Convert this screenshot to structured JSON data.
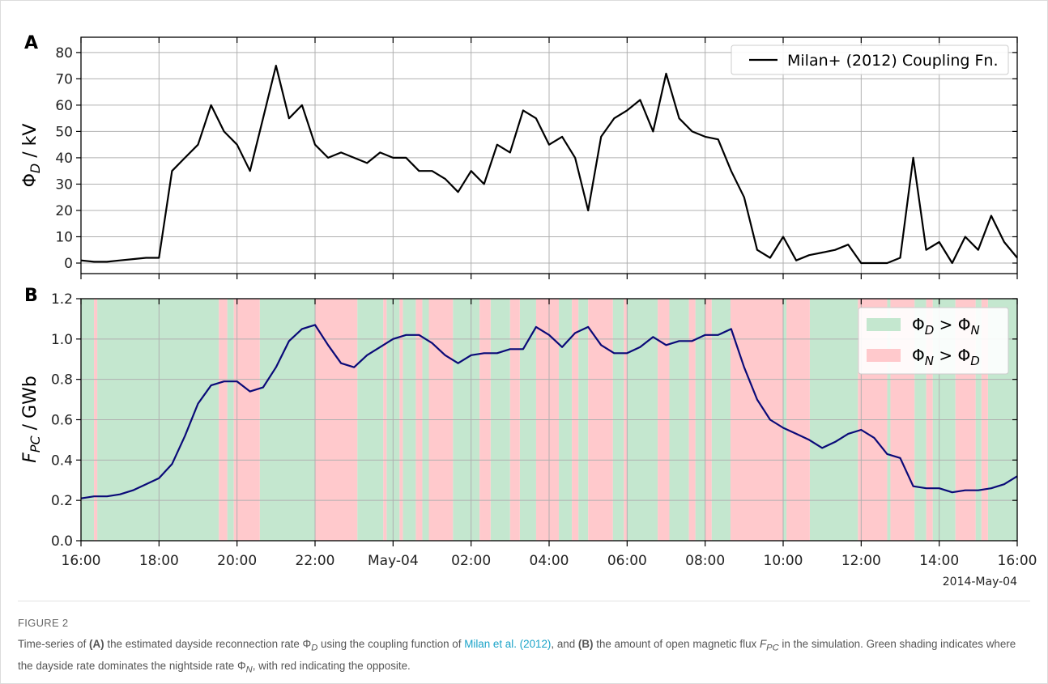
{
  "chart_data": [
    {
      "type": "line",
      "panel_label": "A",
      "ylabel": [
        "Φ",
        "D",
        " / kV"
      ],
      "ylim": [
        -4,
        85.8
      ],
      "yticks": [
        0,
        10,
        20,
        30,
        40,
        50,
        60,
        70,
        80
      ],
      "grid": true,
      "legend": "upper right",
      "xlim": [
        "2014-05-03 16:00",
        "2014-05-04 16:00"
      ],
      "xticks": [
        "2014-05-03 16:00",
        "2014-05-03 18:00",
        "2014-05-03 20:00",
        "2014-05-03 22:00",
        "2014-05-04 00:00",
        "2014-05-04 02:00",
        "2014-05-04 04:00",
        "2014-05-04 06:00",
        "2014-05-04 08:00",
        "2014-05-04 10:00",
        "2014-05-04 12:00",
        "2014-05-04 14:00",
        "2014-05-04 16:00"
      ],
      "x": [
        "2014-05-03 16:00",
        "2014-05-03 16:20",
        "2014-05-03 16:40",
        "2014-05-03 17:00",
        "2014-05-03 17:20",
        "2014-05-03 17:40",
        "2014-05-03 18:00",
        "2014-05-03 18:20",
        "2014-05-03 18:40",
        "2014-05-03 19:00",
        "2014-05-03 19:20",
        "2014-05-03 19:40",
        "2014-05-03 20:00",
        "2014-05-03 20:20",
        "2014-05-03 20:40",
        "2014-05-03 21:00",
        "2014-05-03 21:20",
        "2014-05-03 21:40",
        "2014-05-03 22:00",
        "2014-05-03 22:20",
        "2014-05-03 22:40",
        "2014-05-03 23:00",
        "2014-05-03 23:20",
        "2014-05-03 23:40",
        "2014-05-04 00:00",
        "2014-05-04 00:20",
        "2014-05-04 00:40",
        "2014-05-04 01:00",
        "2014-05-04 01:20",
        "2014-05-04 01:40",
        "2014-05-04 02:00",
        "2014-05-04 02:20",
        "2014-05-04 02:40",
        "2014-05-04 03:00",
        "2014-05-04 03:20",
        "2014-05-04 03:40",
        "2014-05-04 04:00",
        "2014-05-04 04:20",
        "2014-05-04 04:40",
        "2014-05-04 05:00",
        "2014-05-04 05:20",
        "2014-05-04 05:40",
        "2014-05-04 06:00",
        "2014-05-04 06:20",
        "2014-05-04 06:40",
        "2014-05-04 07:00",
        "2014-05-04 07:20",
        "2014-05-04 07:40",
        "2014-05-04 08:00",
        "2014-05-04 08:20",
        "2014-05-04 08:40",
        "2014-05-04 09:00",
        "2014-05-04 09:20",
        "2014-05-04 09:40",
        "2014-05-04 10:00",
        "2014-05-04 10:20",
        "2014-05-04 10:40",
        "2014-05-04 11:00",
        "2014-05-04 11:20",
        "2014-05-04 11:40",
        "2014-05-04 12:00",
        "2014-05-04 12:20",
        "2014-05-04 12:40",
        "2014-05-04 13:00",
        "2014-05-04 13:20",
        "2014-05-04 13:40",
        "2014-05-04 14:00",
        "2014-05-04 14:20",
        "2014-05-04 14:40",
        "2014-05-04 15:00",
        "2014-05-04 15:20",
        "2014-05-04 15:40",
        "2014-05-04 16:00"
      ],
      "series": [
        {
          "name": "Milan+ (2012) Coupling Fn.",
          "color": "#000000",
          "values": [
            1,
            0.5,
            0.5,
            1,
            1.5,
            2,
            2,
            35,
            40,
            45,
            60,
            50,
            45,
            35,
            55,
            75,
            55,
            60,
            45,
            40,
            42,
            40,
            38,
            42,
            40,
            40,
            35,
            35,
            32,
            27,
            35,
            30,
            45,
            42,
            58,
            55,
            45,
            48,
            40,
            20,
            48,
            55,
            58,
            62,
            50,
            72,
            55,
            50,
            48,
            47,
            35,
            25,
            5,
            2,
            10,
            1,
            3,
            4,
            5,
            7,
            0,
            0,
            0,
            2,
            40,
            5,
            8,
            0,
            10,
            5,
            18,
            8,
            2
          ]
        }
      ]
    },
    {
      "type": "line",
      "panel_label": "B",
      "ylabel": [
        "F",
        "PC",
        " / GWb"
      ],
      "ylim": [
        0,
        1.2
      ],
      "yticks": [
        {
          "value": 0,
          "label": "0.0"
        },
        0.2,
        0.4,
        0.6,
        0.8,
        {
          "value": 1,
          "label": "1.0"
        },
        1.2
      ],
      "grid": true,
      "legend": "upper right",
      "xlim": [
        "2014-05-03 16:00",
        "2014-05-04 16:00"
      ],
      "xticks": [
        {
          "value": "2014-05-03 16:00",
          "label": "16:00"
        },
        {
          "value": "2014-05-03 18:00",
          "label": "18:00"
        },
        {
          "value": "2014-05-03 20:00",
          "label": "20:00"
        },
        {
          "value": "2014-05-03 22:00",
          "label": "22:00"
        },
        {
          "value": "2014-05-04 00:00",
          "label": "May-04"
        },
        {
          "value": "2014-05-04 02:00",
          "label": "02:00"
        },
        {
          "value": "2014-05-04 04:00",
          "label": "04:00"
        },
        {
          "value": "2014-05-04 06:00",
          "label": "06:00"
        },
        {
          "value": "2014-05-04 08:00",
          "label": "08:00"
        },
        {
          "value": "2014-05-04 10:00",
          "label": "10:00"
        },
        {
          "value": "2014-05-04 12:00",
          "label": "12:00"
        },
        {
          "value": "2014-05-04 14:00",
          "label": "14:00"
        },
        {
          "value": "2014-05-04 16:00",
          "label": "16:00"
        }
      ],
      "x_offset_label": "2014-May-04",
      "x": [
        "2014-05-03 16:00",
        "2014-05-03 16:20",
        "2014-05-03 16:40",
        "2014-05-03 17:00",
        "2014-05-03 17:20",
        "2014-05-03 17:40",
        "2014-05-03 18:00",
        "2014-05-03 18:20",
        "2014-05-03 18:40",
        "2014-05-03 19:00",
        "2014-05-03 19:20",
        "2014-05-03 19:40",
        "2014-05-03 20:00",
        "2014-05-03 20:20",
        "2014-05-03 20:40",
        "2014-05-03 21:00",
        "2014-05-03 21:20",
        "2014-05-03 21:40",
        "2014-05-03 22:00",
        "2014-05-03 22:20",
        "2014-05-03 22:40",
        "2014-05-03 23:00",
        "2014-05-03 23:20",
        "2014-05-03 23:40",
        "2014-05-04 00:00",
        "2014-05-04 00:20",
        "2014-05-04 00:40",
        "2014-05-04 01:00",
        "2014-05-04 01:20",
        "2014-05-04 01:40",
        "2014-05-04 02:00",
        "2014-05-04 02:20",
        "2014-05-04 02:40",
        "2014-05-04 03:00",
        "2014-05-04 03:20",
        "2014-05-04 03:40",
        "2014-05-04 04:00",
        "2014-05-04 04:20",
        "2014-05-04 04:40",
        "2014-05-04 05:00",
        "2014-05-04 05:20",
        "2014-05-04 05:40",
        "2014-05-04 06:00",
        "2014-05-04 06:20",
        "2014-05-04 06:40",
        "2014-05-04 07:00",
        "2014-05-04 07:20",
        "2014-05-04 07:40",
        "2014-05-04 08:00",
        "2014-05-04 08:20",
        "2014-05-04 08:40",
        "2014-05-04 09:00",
        "2014-05-04 09:20",
        "2014-05-04 09:40",
        "2014-05-04 10:00",
        "2014-05-04 10:20",
        "2014-05-04 10:40",
        "2014-05-04 11:00",
        "2014-05-04 11:20",
        "2014-05-04 11:40",
        "2014-05-04 12:00",
        "2014-05-04 12:20",
        "2014-05-04 12:40",
        "2014-05-04 13:00",
        "2014-05-04 13:20",
        "2014-05-04 13:40",
        "2014-05-04 14:00",
        "2014-05-04 14:20",
        "2014-05-04 14:40",
        "2014-05-04 15:00",
        "2014-05-04 15:20",
        "2014-05-04 15:40",
        "2014-05-04 16:00"
      ],
      "series": [
        {
          "color": "#0a0a78",
          "values": [
            0.21,
            0.22,
            0.22,
            0.23,
            0.25,
            0.28,
            0.31,
            0.38,
            0.52,
            0.68,
            0.77,
            0.79,
            0.79,
            0.74,
            0.76,
            0.86,
            0.99,
            1.05,
            1.07,
            0.97,
            0.88,
            0.86,
            0.92,
            0.96,
            1.0,
            1.02,
            1.02,
            0.98,
            0.92,
            0.88,
            0.92,
            0.93,
            0.93,
            0.95,
            0.95,
            1.06,
            1.02,
            0.96,
            1.03,
            1.06,
            0.97,
            0.93,
            0.93,
            0.96,
            1.01,
            0.97,
            0.99,
            0.99,
            1.02,
            1.02,
            1.05,
            0.86,
            0.7,
            0.6,
            0.56,
            0.53,
            0.5,
            0.46,
            0.49,
            0.53,
            0.55,
            0.51,
            0.43,
            0.41,
            0.27,
            0.26,
            0.26,
            0.24,
            0.25,
            0.25,
            0.26,
            0.28,
            0.32
          ]
        }
      ],
      "regions": [
        {
          "name": [
            "Φ",
            "D",
            " > Φ",
            "N"
          ],
          "color": "#c4e7cf",
          "spans": [
            [
              "2014-05-03 16:00",
              "2014-05-03 16:20"
            ],
            [
              "2014-05-03 16:25",
              "2014-05-03 19:32"
            ],
            [
              "2014-05-03 19:45",
              "2014-05-03 19:55"
            ],
            [
              "2014-05-03 20:35",
              "2014-05-03 22:00"
            ],
            [
              "2014-05-03 23:05",
              "2014-05-03 23:45"
            ],
            [
              "2014-05-03 23:50",
              "2014-05-04 00:10"
            ],
            [
              "2014-05-04 00:15",
              "2014-05-04 00:35"
            ],
            [
              "2014-05-04 00:45",
              "2014-05-04 00:55"
            ],
            [
              "2014-05-04 01:32",
              "2014-05-04 02:13"
            ],
            [
              "2014-05-04 02:30",
              "2014-05-04 03:00"
            ],
            [
              "2014-05-04 03:15",
              "2014-05-04 03:40"
            ],
            [
              "2014-05-04 04:15",
              "2014-05-04 04:35"
            ],
            [
              "2014-05-04 04:45",
              "2014-05-04 05:00"
            ],
            [
              "2014-05-04 05:38",
              "2014-05-04 05:55"
            ],
            [
              "2014-05-04 06:00",
              "2014-05-04 06:47"
            ],
            [
              "2014-05-04 07:05",
              "2014-05-04 07:35"
            ],
            [
              "2014-05-04 07:45",
              "2014-05-04 08:00"
            ],
            [
              "2014-05-04 08:10",
              "2014-05-04 08:39"
            ],
            [
              "2014-05-04 10:00",
              "2014-05-04 10:05"
            ],
            [
              "2014-05-04 10:41",
              "2014-05-04 11:55"
            ],
            [
              "2014-05-04 12:40",
              "2014-05-04 12:45"
            ],
            [
              "2014-05-04 13:22",
              "2014-05-04 13:40"
            ],
            [
              "2014-05-04 13:50",
              "2014-05-04 14:25"
            ],
            [
              "2014-05-04 14:56",
              "2014-05-04 15:05"
            ],
            [
              "2014-05-04 15:15",
              "2014-05-04 16:00"
            ]
          ]
        },
        {
          "name": [
            "Φ",
            "N",
            " > Φ",
            "D"
          ],
          "color": "#ffc9cc",
          "spans": [
            [
              "2014-05-03 16:20",
              "2014-05-03 16:25"
            ],
            [
              "2014-05-03 19:32",
              "2014-05-03 19:45"
            ],
            [
              "2014-05-03 19:55",
              "2014-05-03 20:35"
            ],
            [
              "2014-05-03 22:00",
              "2014-05-03 23:05"
            ],
            [
              "2014-05-03 23:45",
              "2014-05-03 23:50"
            ],
            [
              "2014-05-04 00:10",
              "2014-05-04 00:15"
            ],
            [
              "2014-05-04 00:35",
              "2014-05-04 00:45"
            ],
            [
              "2014-05-04 00:55",
              "2014-05-04 01:32"
            ],
            [
              "2014-05-04 02:13",
              "2014-05-04 02:30"
            ],
            [
              "2014-05-04 03:00",
              "2014-05-04 03:15"
            ],
            [
              "2014-05-04 03:40",
              "2014-05-04 04:15"
            ],
            [
              "2014-05-04 04:35",
              "2014-05-04 04:45"
            ],
            [
              "2014-05-04 05:00",
              "2014-05-04 05:38"
            ],
            [
              "2014-05-04 05:55",
              "2014-05-04 06:00"
            ],
            [
              "2014-05-04 06:47",
              "2014-05-04 07:05"
            ],
            [
              "2014-05-04 07:35",
              "2014-05-04 07:45"
            ],
            [
              "2014-05-04 08:00",
              "2014-05-04 08:10"
            ],
            [
              "2014-05-04 08:39",
              "2014-05-04 10:00"
            ],
            [
              "2014-05-04 10:05",
              "2014-05-04 10:41"
            ],
            [
              "2014-05-04 11:55",
              "2014-05-04 12:40"
            ],
            [
              "2014-05-04 12:45",
              "2014-05-04 13:22"
            ],
            [
              "2014-05-04 13:40",
              "2014-05-04 13:50"
            ],
            [
              "2014-05-04 14:25",
              "2014-05-04 14:56"
            ],
            [
              "2014-05-04 15:05",
              "2014-05-04 15:15"
            ]
          ]
        }
      ]
    }
  ],
  "caption": {
    "label": "FIGURE 2",
    "parts": [
      "Time-series of ",
      "(A)",
      " the estimated dayside reconnection rate Φ",
      "D",
      " using the coupling function of ",
      "Milan et al. (2012)",
      ", and ",
      "(B)",
      " the amount of open magnetic flux ",
      "F",
      "PC",
      " in the simulation. Green shading indicates where the dayside rate dominates the nightside rate Φ",
      "N",
      ", with red indicating the opposite."
    ]
  }
}
